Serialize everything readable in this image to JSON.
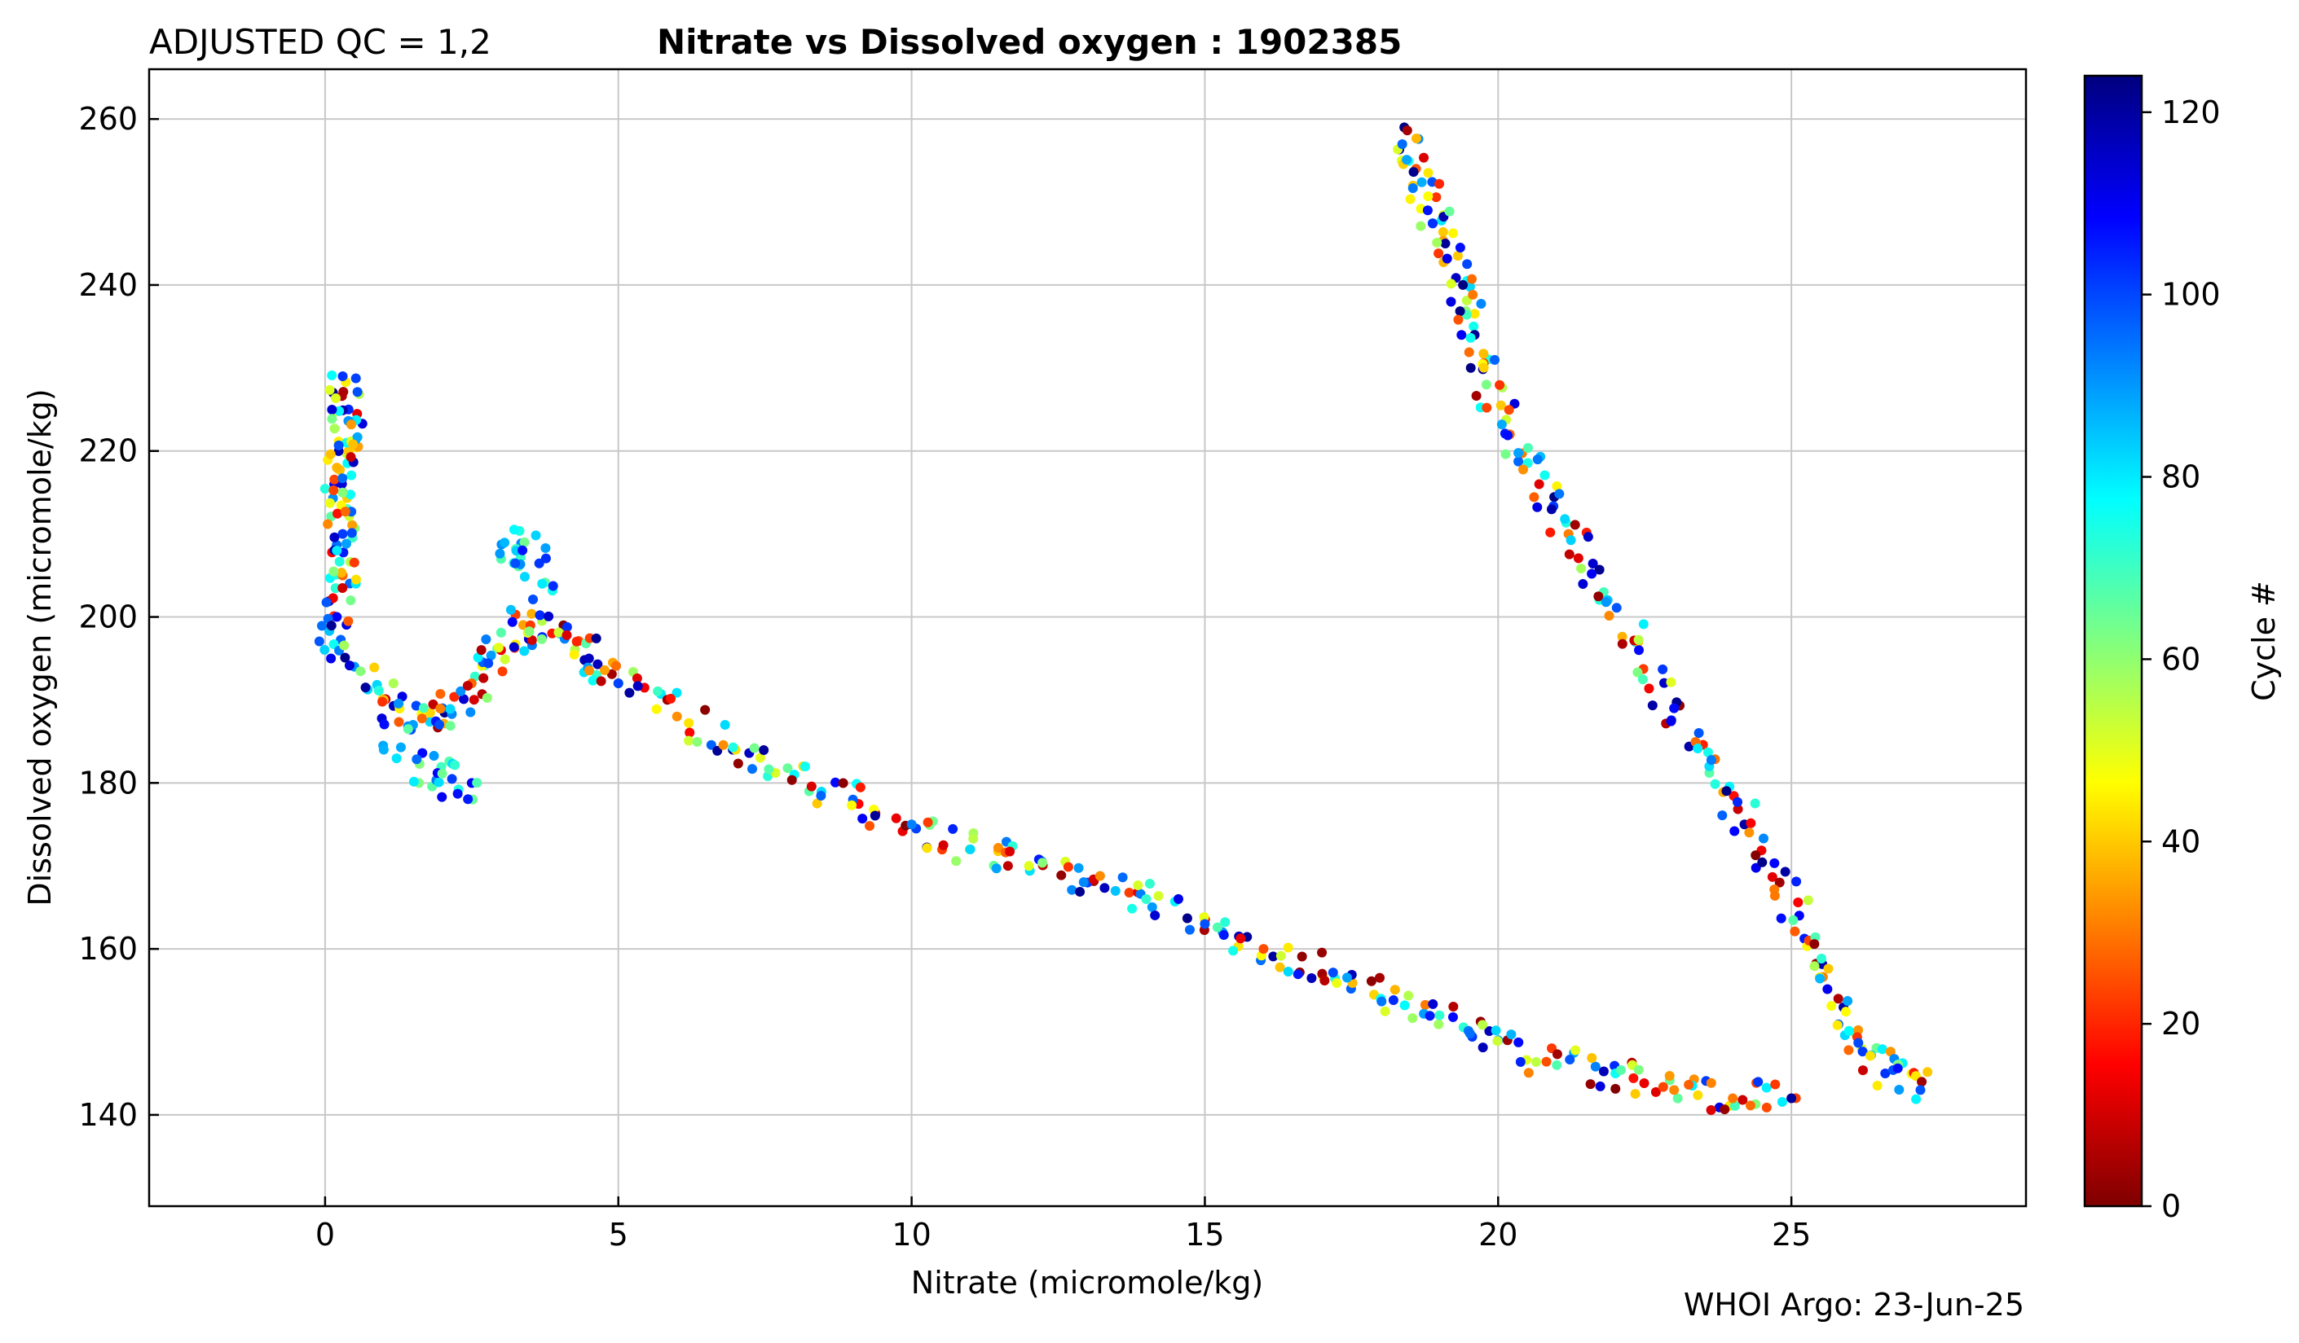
{
  "header": {
    "qc_label": "ADJUSTED QC = 1,2",
    "title": "Nitrate vs Dissolved oxygen : 1902385"
  },
  "footer": {
    "credit": "WHOI Argo: 23-Jun-25"
  },
  "chart_data": {
    "type": "scatter",
    "title": "Nitrate vs Dissolved oxygen : 1902385",
    "xlabel": "Nitrate  (micromole/kg)",
    "ylabel": "Dissolved oxygen  (micromole/kg)",
    "xlim": [
      -3,
      29
    ],
    "ylim": [
      129,
      266
    ],
    "xticks": [
      0,
      5,
      10,
      15,
      20,
      25
    ],
    "yticks": [
      140,
      160,
      180,
      200,
      220,
      240,
      260
    ],
    "grid": true,
    "colormap": "jet",
    "colorbar": {
      "label": "Cycle #",
      "range": [
        0,
        124
      ],
      "ticks": [
        0,
        20,
        40,
        60,
        80,
        100,
        120
      ],
      "colors": [
        "#7f0000",
        "#ff0000",
        "#ff8000",
        "#ffff00",
        "#80ff80",
        "#00ffff",
        "#0080ff",
        "#0000ff",
        "#00007f"
      ]
    },
    "series": [
      {
        "points": [
          [
            0.1,
            195
          ],
          [
            0.2,
            200
          ],
          [
            0.3,
            205
          ],
          [
            0.3,
            210
          ],
          [
            0.3,
            215
          ],
          [
            0.4,
            220
          ],
          [
            0.4,
            225
          ],
          [
            0.3,
            229
          ],
          [
            0.2,
            218
          ],
          [
            0.2,
            208
          ]
        ],
        "cycle_range": [
          5,
          124
        ]
      },
      {
        "points": [
          [
            0.5,
            194
          ],
          [
            1.0,
            190
          ],
          [
            1.5,
            187
          ],
          [
            2.0,
            189
          ],
          [
            2.5,
            192
          ],
          [
            3.0,
            196
          ],
          [
            3.5,
            199
          ],
          [
            4.0,
            198
          ],
          [
            4.5,
            195
          ],
          [
            5.0,
            192
          ]
        ],
        "cycle_range": [
          0,
          124
        ]
      },
      {
        "points": [
          [
            3.0,
            207
          ],
          [
            3.4,
            209
          ],
          [
            3.7,
            204
          ],
          [
            1.6,
            180
          ],
          [
            2.5,
            180
          ],
          [
            1.0,
            184
          ]
        ],
        "cycle_range": [
          60,
          110
        ]
      },
      {
        "points": [
          [
            5,
            192
          ],
          [
            6,
            188
          ],
          [
            7,
            184
          ],
          [
            8,
            181
          ],
          [
            9,
            178
          ],
          [
            10,
            175
          ],
          [
            11,
            172
          ],
          [
            12,
            170
          ],
          [
            13,
            168
          ],
          [
            14,
            166
          ],
          [
            15,
            163
          ],
          [
            16,
            160
          ],
          [
            17,
            157
          ],
          [
            18,
            154
          ],
          [
            19,
            152
          ],
          [
            20,
            149
          ],
          [
            21,
            146
          ],
          [
            22,
            145
          ],
          [
            23,
            143
          ],
          [
            24,
            142
          ],
          [
            25,
            142
          ]
        ],
        "cycle_range": [
          0,
          124
        ]
      },
      {
        "points": [
          [
            18.4,
            259
          ],
          [
            18.6,
            254
          ],
          [
            18.8,
            249
          ],
          [
            19.1,
            245
          ],
          [
            19.4,
            240
          ],
          [
            19.6,
            234
          ],
          [
            19.8,
            228
          ],
          [
            20.2,
            222
          ],
          [
            20.7,
            216
          ],
          [
            21.2,
            210
          ],
          [
            21.8,
            203
          ],
          [
            22.4,
            196
          ],
          [
            23.0,
            189
          ],
          [
            23.6,
            182
          ],
          [
            24.2,
            175
          ],
          [
            24.8,
            168
          ],
          [
            25.3,
            161
          ],
          [
            25.8,
            154
          ],
          [
            26.2,
            148
          ],
          [
            26.6,
            145
          ],
          [
            27.2,
            143
          ]
        ],
        "cycle_range": [
          0,
          124
        ]
      }
    ]
  }
}
